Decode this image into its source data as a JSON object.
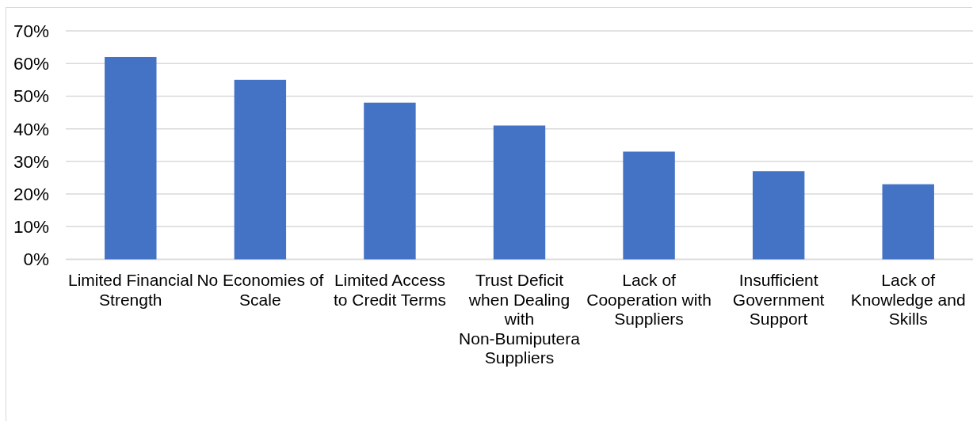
{
  "chart_data": {
    "type": "bar",
    "categories": [
      "Limited Financial Strength",
      "No Economies of Scale",
      "Limited Access to Credit Terms",
      "Trust Deficit when Dealing with Non-Bumiputera Suppliers",
      "Lack of Cooperation with Suppliers",
      "Insufficient Government Support",
      "Lack of Knowledge and Skills"
    ],
    "values": [
      62,
      55,
      48,
      41,
      33,
      27,
      23
    ],
    "color": "#4472c4",
    "ylim": [
      0,
      70
    ],
    "yticks": [
      {
        "value": 0,
        "label": "0%"
      },
      {
        "value": 10,
        "label": "10%"
      },
      {
        "value": 20,
        "label": "20%"
      },
      {
        "value": 30,
        "label": "30%"
      },
      {
        "value": 40,
        "label": "40%"
      },
      {
        "value": 50,
        "label": "50%"
      },
      {
        "value": 60,
        "label": "60%"
      },
      {
        "value": 70,
        "label": "70%"
      }
    ],
    "grid": "y"
  }
}
